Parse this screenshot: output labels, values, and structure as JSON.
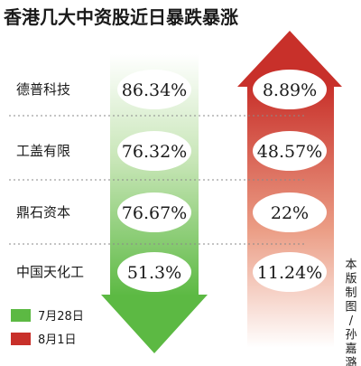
{
  "title": "香港几大中资股近日暴跌暴涨",
  "credit": "本版制图/孙嘉潞",
  "colors": {
    "jul28": "#5cb943",
    "aug1": "#c8302a"
  },
  "chart_data": {
    "type": "table",
    "title": "香港几大中资股近日暴跌暴涨",
    "companies": [
      "德普科技",
      "工盖有限",
      "鼎石资本",
      "中国天化工"
    ],
    "series": [
      {
        "name": "7月28日",
        "color": "#5cb943",
        "values": [
          86.34,
          76.32,
          76.67,
          51.3
        ],
        "labels": [
          "86.34%",
          "76.32%",
          "76.67%",
          "51.3%"
        ]
      },
      {
        "name": "8月1日",
        "color": "#c8302a",
        "values": [
          8.89,
          48.57,
          22,
          11.24
        ],
        "labels": [
          "8.89%",
          "48.57%",
          "22%",
          "11.24%"
        ]
      }
    ],
    "legend": [
      "7月28日",
      "8月1日"
    ]
  }
}
